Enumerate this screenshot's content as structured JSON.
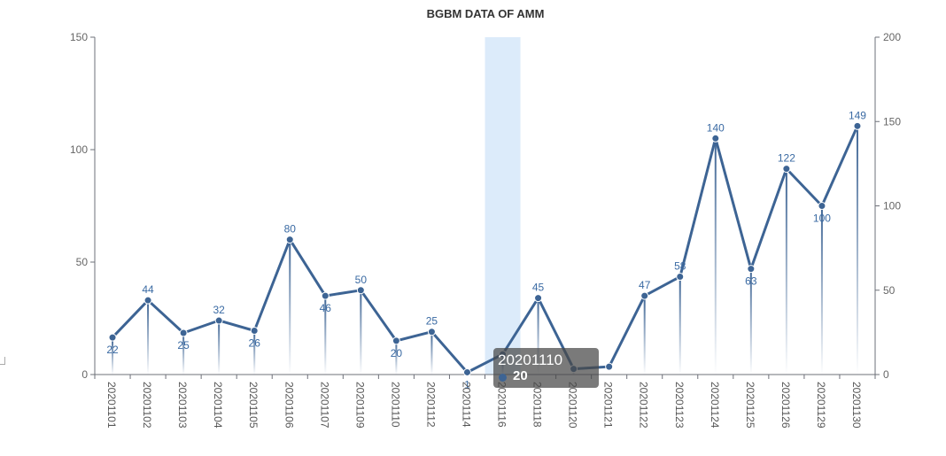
{
  "chart_data": {
    "type": "line",
    "title": "BGBM DATA OF AMM",
    "categories": [
      "20201101",
      "20201102",
      "20201103",
      "20201104",
      "20201105",
      "20201106",
      "20201107",
      "20201109",
      "20201110",
      "20201112",
      "20201114",
      "20201116",
      "20201118",
      "20201120",
      "20201121",
      "20201122",
      "20201123",
      "20201124",
      "20201125",
      "20201126",
      "20201129",
      "20201130"
    ],
    "series": [
      {
        "type": "line",
        "axis": "left",
        "values": [
          16.5,
          33,
          18.5,
          24,
          19.5,
          60,
          35,
          37.5,
          15,
          19,
          1,
          9,
          34,
          2.5,
          3.5,
          35,
          43.5,
          105,
          47,
          91.5,
          75,
          110.5
        ]
      },
      {
        "type": "bar",
        "axis": "right",
        "values": [
          22,
          44,
          25,
          32,
          26,
          80,
          46,
          50,
          20,
          25,
          1,
          12,
          45,
          3,
          0,
          47,
          58,
          140,
          63,
          122,
          100,
          149
        ]
      }
    ],
    "point_labels": [
      "22",
      "44",
      "25",
      "32",
      "26",
      "80",
      "46",
      "50",
      "20",
      "25",
      "1",
      "",
      "45",
      "",
      "",
      "47",
      "58",
      "140",
      "63",
      "122",
      "100",
      "149"
    ],
    "y_left": {
      "min": 0,
      "max": 150,
      "ticks": [
        "0",
        "50",
        "100",
        "150"
      ]
    },
    "y_right": {
      "min": 0,
      "max": 200,
      "ticks": [
        "0",
        "50",
        "100",
        "150",
        "200"
      ]
    },
    "highlighted_category": "20201116",
    "legend": "none",
    "grid": false,
    "colors": {
      "line": "#3d6494",
      "bar": "#3d6494",
      "label": "#3a6aa3",
      "highlight": "#dcebfa"
    }
  },
  "tooltip": {
    "title": "20201110",
    "value": "20",
    "dot_color": "#3d6494"
  }
}
